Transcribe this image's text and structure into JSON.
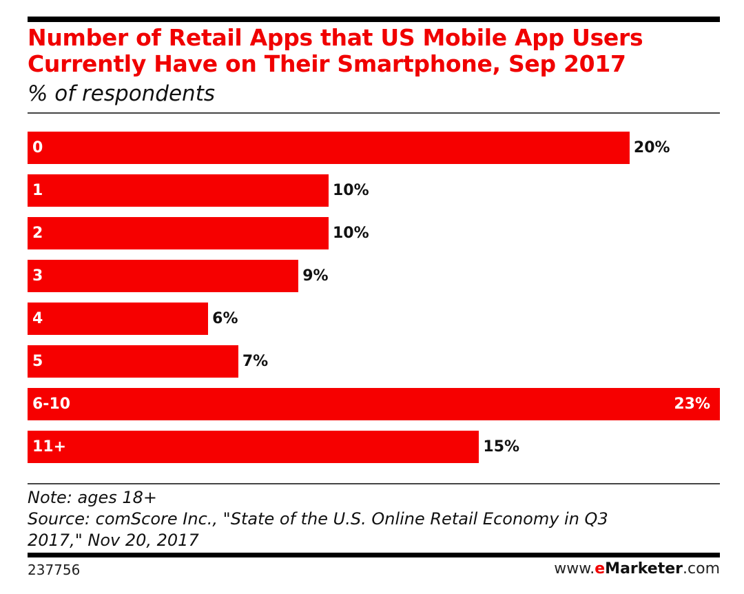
{
  "chart_data": {
    "type": "bar",
    "orientation": "horizontal",
    "title": "Number of Retail Apps that US Mobile App Users Currently Have on Their Smartphone, Sep 2017",
    "title_lines": [
      "Number of Retail Apps that US Mobile App Users",
      "Currently Have on Their Smartphone, Sep 2017"
    ],
    "subtitle": "% of respondents",
    "categories": [
      "0",
      "1",
      "2",
      "3",
      "4",
      "5",
      "6-10",
      "11+"
    ],
    "values": [
      20,
      10,
      10,
      9,
      6,
      7,
      23,
      15
    ],
    "value_labels": [
      "20%",
      "10%",
      "10%",
      "9%",
      "6%",
      "7%",
      "23%",
      "15%"
    ],
    "xlim": [
      0,
      23
    ],
    "grid": false,
    "bar_color": "#f60000"
  },
  "footer": {
    "note": "Note: ages 18+",
    "source_line1": "Source: comScore Inc., \"State of the U.S. Online Retail Economy in Q3",
    "source_line2": "2017,\" Nov 20, 2017",
    "chart_id": "237756",
    "brand_prefix": "www.",
    "brand_e": "e",
    "brand_name": "Marketer",
    "brand_suffix": ".com"
  }
}
